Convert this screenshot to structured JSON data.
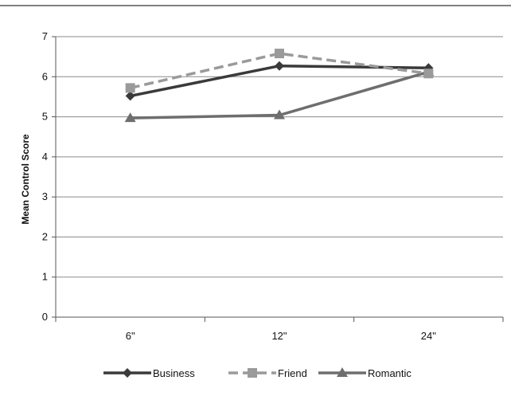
{
  "chart_data": {
    "type": "line",
    "title": "",
    "xlabel": "",
    "ylabel": "Mean Control Score",
    "categories": [
      "6\"",
      "12\"",
      "24\""
    ],
    "ylim": [
      0,
      7
    ],
    "yticks": [
      0,
      1,
      2,
      3,
      4,
      5,
      6,
      7
    ],
    "grid": true,
    "legend_position": "bottom",
    "series": [
      {
        "name": "Business",
        "values": [
          5.52,
          6.27,
          6.22
        ],
        "color": "#3a3a3a",
        "dash": "solid",
        "marker": "diamond"
      },
      {
        "name": "Friend",
        "values": [
          5.72,
          6.58,
          6.08
        ],
        "color": "#9a9a9a",
        "dash": "dashed",
        "marker": "square"
      },
      {
        "name": "Romantic",
        "values": [
          4.97,
          5.04,
          6.12
        ],
        "color": "#6e6e6e",
        "dash": "solid",
        "marker": "triangle"
      }
    ]
  }
}
